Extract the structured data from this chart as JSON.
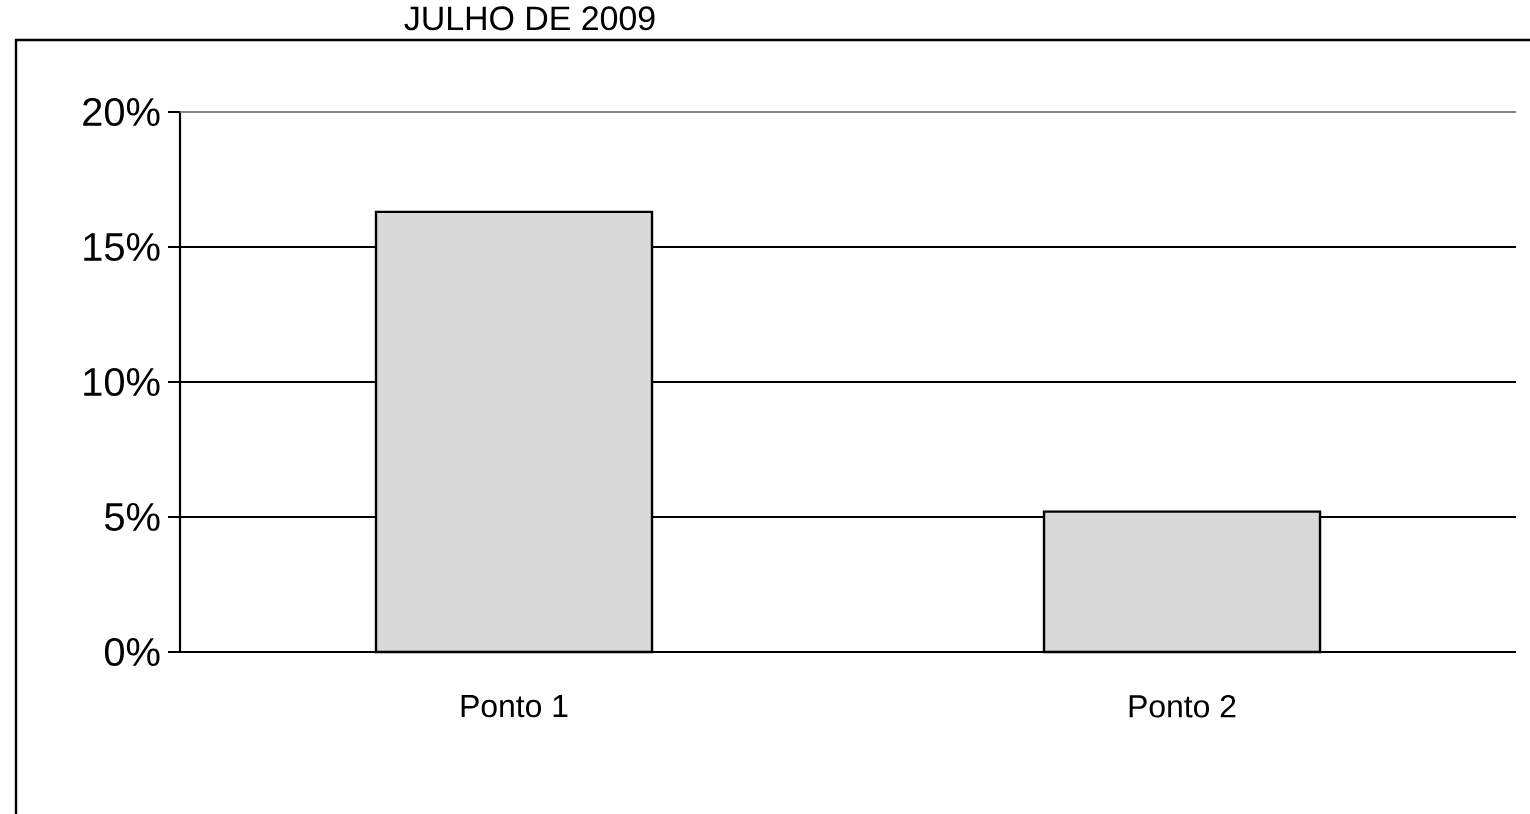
{
  "chart_data": {
    "type": "bar",
    "title": "JULHO DE 2009",
    "categories": [
      "Ponto 1",
      "Ponto 2"
    ],
    "values": [
      16.3,
      5.2
    ],
    "color": "#d9d9d9",
    "ylim": [
      0,
      20
    ],
    "yticks": [
      {
        "value": 0,
        "label": "0%"
      },
      {
        "value": 5,
        "label": "5%"
      },
      {
        "value": 10,
        "label": "10%"
      },
      {
        "value": 15,
        "label": "15%"
      },
      {
        "value": 20,
        "label": "20%"
      }
    ],
    "grid": "y"
  }
}
